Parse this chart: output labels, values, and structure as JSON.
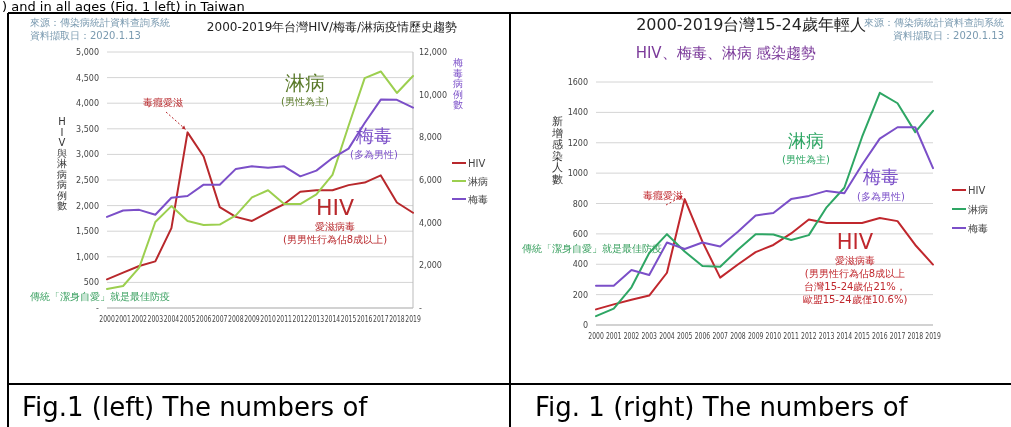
{
  "chart_data": [
    {
      "type": "line",
      "title": "2000-2019年台灣HIV/梅毒/淋病疫情歷史趨勢",
      "ylabel": "HIV與淋病病例數",
      "y2label": "梅毒病例數",
      "x": [
        2000,
        2001,
        2002,
        2003,
        2004,
        2005,
        2006,
        2007,
        2008,
        2009,
        2010,
        2011,
        2012,
        2013,
        2014,
        2015,
        2016,
        2017,
        2018,
        2019
      ],
      "xlim": [
        2000,
        2019
      ],
      "xticks": [
        2000,
        2001,
        2002,
        2003,
        2004,
        2005,
        2006,
        2007,
        2008,
        2009,
        2010,
        2011,
        2012,
        2013,
        2014,
        2015,
        2016,
        2017,
        2018,
        2019
      ],
      "ylim": [
        0,
        5000
      ],
      "yticks": [
        {
          "value": 0,
          "label": "-"
        },
        500,
        {
          "value": 1000,
          "label": "1,000"
        },
        {
          "value": 1500,
          "label": "1,500"
        },
        {
          "value": 2000,
          "label": "2,000"
        },
        {
          "value": 2500,
          "label": "2,500"
        },
        {
          "value": 3000,
          "label": "3,000"
        },
        {
          "value": 3500,
          "label": "3,500"
        },
        {
          "value": 4000,
          "label": "4,000"
        },
        {
          "value": 4500,
          "label": "4,500"
        },
        {
          "value": 5000,
          "label": "5,000"
        }
      ],
      "y2lim": [
        0,
        12000
      ],
      "y2ticks": [
        {
          "value": 0,
          "label": "-"
        },
        {
          "value": 2000,
          "label": "2,000"
        },
        {
          "value": 4000,
          "label": "4,000"
        },
        {
          "value": 6000,
          "label": "6,000"
        },
        {
          "value": 8000,
          "label": "8,000"
        },
        {
          "value": 10000,
          "label": "10,000"
        },
        {
          "value": 12000,
          "label": "12,000"
        }
      ],
      "grid": "y",
      "legend": "right",
      "marker": "none",
      "line_style": "solid",
      "series": [
        {
          "name": "HIV",
          "color": "#b8282c",
          "values": [
            560,
            690,
            820,
            910,
            1560,
            3430,
            2960,
            1970,
            1780,
            1700,
            1870,
            2030,
            2270,
            2300,
            2300,
            2400,
            2450,
            2590,
            2060,
            1860
          ]
        },
        {
          "name": "淋病",
          "color": "#9ccf4f",
          "values": [
            370,
            430,
            790,
            1680,
            1990,
            1700,
            1620,
            1630,
            1810,
            2160,
            2300,
            2030,
            2030,
            2220,
            2600,
            3560,
            4490,
            4620,
            4200,
            4530
          ]
        },
        {
          "name": "梅毒",
          "color": "#7b4fc8",
          "axis": "y2",
          "values": [
            4270,
            4570,
            4600,
            4370,
            5170,
            5250,
            5780,
            5780,
            6520,
            6640,
            6570,
            6640,
            6170,
            6440,
            7030,
            7470,
            8670,
            9770,
            9760,
            9390
          ]
        }
      ],
      "annotations": [
        "來源：傳染病統計資料查詢系統",
        "資料擷取日：2020.1.13",
        {
          "text": "毒癮愛滋",
          "x": 2005,
          "y": 3430
        },
        "淋病",
        "(男性為主)",
        "梅毒",
        "(多為男性)",
        "HIV",
        "愛滋病毒",
        "(男男性行為佔8成以上)",
        "傳統「潔身自愛」就是最佳防疫",
        ") and in all ages (Fig. 1 left) in Taiwan",
        "Fig.1 (left) The numbers of"
      ]
    },
    {
      "type": "line",
      "title": "2000-2019台灣15-24歲年輕人",
      "subtitle": "HIV、梅毒、淋病 感染趨勢",
      "ylabel": "新增感染人數",
      "x": [
        2000,
        2001,
        2002,
        2003,
        2004,
        2005,
        2006,
        2007,
        2008,
        2009,
        2010,
        2011,
        2012,
        2013,
        2014,
        2015,
        2016,
        2017,
        2018,
        2019
      ],
      "xlim": [
        2000,
        2019
      ],
      "xticks": [
        2000,
        2001,
        2002,
        2003,
        2004,
        2005,
        2006,
        2007,
        2008,
        2009,
        2010,
        2011,
        2012,
        2013,
        2014,
        2015,
        2016,
        2017,
        2018,
        2019
      ],
      "ylim": [
        0,
        1600
      ],
      "yticks": [
        0,
        200,
        400,
        600,
        800,
        1000,
        1200,
        1400,
        1600
      ],
      "grid": "y",
      "legend": "right",
      "marker": "none",
      "line_style": "solid",
      "series": [
        {
          "name": "HIV",
          "color": "#c0272d",
          "values": [
            103,
            136,
            166,
            194,
            344,
            829,
            549,
            312,
            398,
            480,
            527,
            603,
            695,
            672,
            672,
            672,
            704,
            684,
            527,
            398
          ]
        },
        {
          "name": "淋病",
          "color": "#2ea664",
          "values": [
            58,
            108,
            248,
            474,
            598,
            484,
            388,
            383,
            495,
            598,
            596,
            560,
            592,
            775,
            904,
            1238,
            1529,
            1460,
            1270,
            1410
          ]
        },
        {
          "name": "梅毒",
          "color": "#7b4fc8",
          "values": [
            258,
            258,
            362,
            329,
            543,
            500,
            543,
            517,
            614,
            721,
            738,
            829,
            850,
            883,
            868,
            1055,
            1227,
            1302,
            1302,
            1033
          ]
        }
      ],
      "annotations": [
        "來源：傳染病統計資料查詢系統",
        "資料擷取日：2020.1.13",
        {
          "text": "毒癮愛滋",
          "x": 2005,
          "y": 829
        },
        "淋病",
        "(男性為主)",
        "梅毒",
        "(多為男性)",
        "HIV",
        "愛滋病毒",
        "(男男性行為佔8成以上",
        "台灣15-24歲佔21%，",
        "歐盟15-24歲僅10.6%)",
        "傳統「潔身自愛」就是最佳防疫",
        "Fig. 1 (right) The numbers of"
      ]
    }
  ]
}
